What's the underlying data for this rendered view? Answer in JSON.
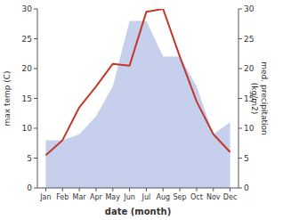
{
  "chart_data": {
    "type": "line",
    "xlabel": "date (month)",
    "ylabel": "max temp (C)",
    "y2label": "med. precipitation\n(kg/m2)",
    "categories": [
      "Jan",
      "Feb",
      "Mar",
      "Apr",
      "May",
      "Jun",
      "Jul",
      "Aug",
      "Sep",
      "Oct",
      "Nov",
      "Dec"
    ],
    "series": [
      {
        "type": "area",
        "axis": "y2",
        "color": "#b8c4e8",
        "values": [
          8,
          8,
          9,
          12,
          17,
          28,
          28,
          22,
          22,
          17,
          9,
          11
        ]
      },
      {
        "type": "line",
        "color": "#c0392b",
        "values": [
          5.5,
          8.0,
          13.5,
          17.0,
          20.8,
          20.5,
          29.5,
          30.0,
          22.0,
          14.5,
          9.0,
          6.0
        ]
      }
    ],
    "ylim": [
      0,
      30
    ],
    "yticks": [
      0,
      5,
      10,
      15,
      20,
      25,
      30
    ],
    "y2lim": [
      0,
      30
    ],
    "y2ticks": [
      0,
      5,
      10,
      15,
      20,
      25,
      30
    ],
    "grid": false
  }
}
